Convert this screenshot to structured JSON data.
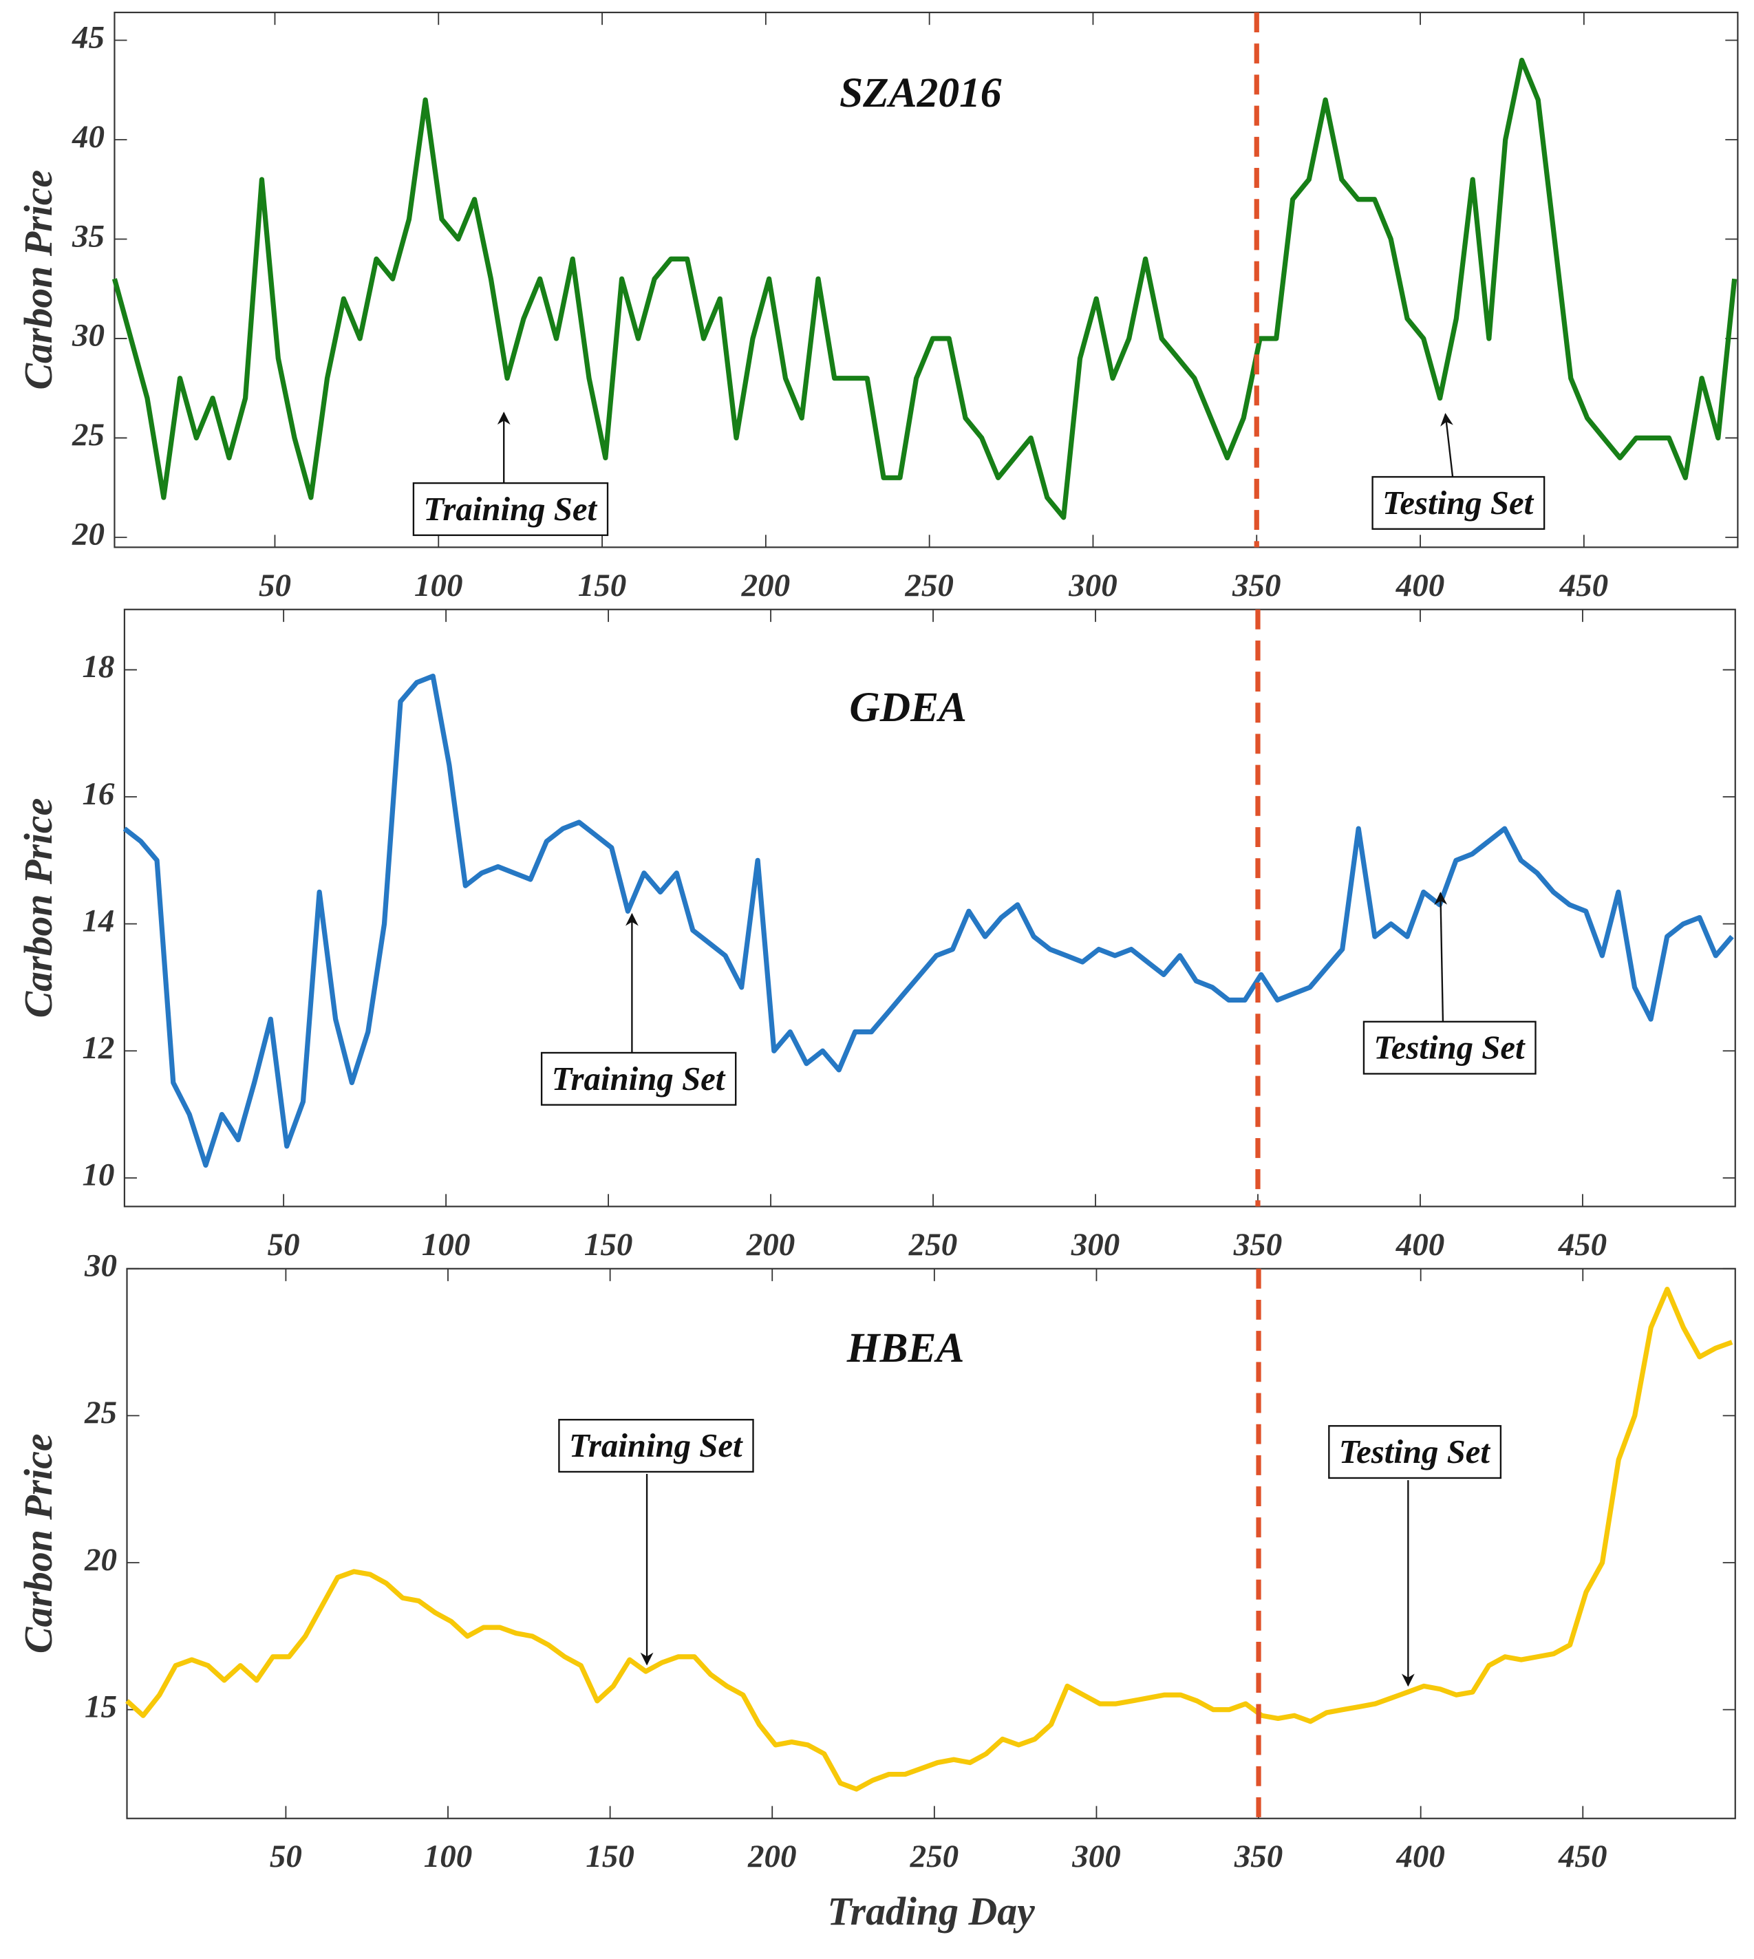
{
  "chart_data": [
    {
      "type": "line",
      "title": "SZA2016",
      "ylabel": "Carbon Price",
      "color": "#177f17",
      "xlim": [
        1,
        497
      ],
      "ylim": [
        19.5,
        46.4
      ],
      "xticks": [
        50,
        100,
        150,
        200,
        250,
        300,
        350,
        400,
        450
      ],
      "yticks": [
        20,
        25,
        30,
        35,
        40,
        45
      ],
      "vline": 350,
      "annotations": [
        "Training Set",
        "Testing Set"
      ],
      "x": [
        1,
        6,
        11,
        16,
        21,
        26,
        31,
        36,
        41,
        46,
        51,
        56,
        61,
        66,
        71,
        76,
        81,
        86,
        91,
        96,
        101,
        106,
        111,
        116,
        121,
        126,
        131,
        136,
        141,
        146,
        151,
        156,
        161,
        166,
        171,
        176,
        181,
        186,
        191,
        196,
        201,
        206,
        211,
        216,
        221,
        226,
        231,
        236,
        241,
        246,
        251,
        256,
        261,
        266,
        271,
        276,
        281,
        286,
        291,
        296,
        301,
        306,
        311,
        316,
        321,
        326,
        331,
        336,
        341,
        346,
        351,
        356,
        361,
        366,
        371,
        376,
        381,
        386,
        391,
        396,
        401,
        406,
        411,
        416,
        421,
        426,
        431,
        436,
        441,
        446,
        451,
        456,
        461,
        466,
        471,
        476,
        481,
        486,
        491,
        496
      ],
      "values": [
        33,
        30,
        27,
        22,
        28,
        25,
        27,
        24,
        27,
        38,
        29,
        25,
        22,
        28,
        32,
        30,
        34,
        33,
        36,
        42,
        36,
        35,
        37,
        33,
        28,
        31,
        33,
        30,
        34,
        28,
        24,
        33,
        30,
        33,
        34,
        34,
        30,
        32,
        25,
        30,
        33,
        28,
        26,
        33,
        28,
        28,
        28,
        23,
        23,
        28,
        30,
        30,
        26,
        25,
        23,
        24,
        25,
        22,
        21,
        29,
        32,
        28,
        30,
        34,
        30,
        29,
        28,
        26,
        24,
        26,
        30,
        30,
        37,
        38,
        42,
        38,
        37,
        37,
        35,
        31,
        30,
        27,
        31,
        38,
        30,
        40,
        44,
        42,
        35,
        28,
        26,
        25,
        24,
        25,
        25,
        25,
        23,
        28,
        25,
        33
      ]
    },
    {
      "type": "line",
      "title": "GDEA",
      "ylabel": "Carbon Price",
      "color": "#2678c4",
      "xlim": [
        1,
        497
      ],
      "ylim": [
        9.55,
        18.95
      ],
      "xticks": [
        50,
        100,
        150,
        200,
        250,
        300,
        350,
        400,
        450
      ],
      "yticks": [
        10,
        12,
        14,
        16,
        18
      ],
      "vline": 350,
      "annotations": [
        "Training Set",
        "Testing Set"
      ],
      "x": [
        1,
        6,
        11,
        16,
        21,
        26,
        31,
        36,
        41,
        46,
        51,
        56,
        61,
        66,
        71,
        76,
        81,
        86,
        91,
        96,
        101,
        106,
        111,
        116,
        121,
        126,
        131,
        136,
        141,
        146,
        151,
        156,
        161,
        166,
        171,
        176,
        181,
        186,
        191,
        196,
        201,
        206,
        211,
        216,
        221,
        226,
        231,
        236,
        241,
        246,
        251,
        256,
        261,
        266,
        271,
        276,
        281,
        286,
        291,
        296,
        301,
        306,
        311,
        316,
        321,
        326,
        331,
        336,
        341,
        346,
        351,
        356,
        361,
        366,
        371,
        376,
        381,
        386,
        391,
        396,
        401,
        406,
        411,
        416,
        421,
        426,
        431,
        436,
        441,
        446,
        451,
        456,
        461,
        466,
        471,
        476,
        481,
        486,
        491,
        496
      ],
      "values": [
        15.5,
        15.3,
        15.0,
        11.5,
        11.0,
        10.2,
        11.0,
        10.6,
        11.5,
        12.5,
        10.5,
        11.2,
        14.5,
        12.5,
        11.5,
        12.3,
        14.0,
        17.5,
        17.8,
        17.9,
        16.5,
        14.6,
        14.8,
        14.9,
        14.8,
        14.7,
        15.3,
        15.5,
        15.6,
        15.4,
        15.2,
        14.2,
        14.8,
        14.5,
        14.8,
        13.9,
        13.7,
        13.5,
        13.0,
        15.0,
        12.0,
        12.3,
        11.8,
        12.0,
        11.7,
        12.3,
        12.3,
        12.6,
        12.9,
        13.2,
        13.5,
        13.6,
        14.2,
        13.8,
        14.1,
        14.3,
        13.8,
        13.6,
        13.5,
        13.4,
        13.6,
        13.5,
        13.6,
        13.4,
        13.2,
        13.5,
        13.1,
        13.0,
        12.8,
        12.8,
        13.2,
        12.8,
        12.9,
        13.0,
        13.3,
        13.6,
        15.5,
        13.8,
        14.0,
        13.8,
        14.5,
        14.3,
        15.0,
        15.1,
        15.3,
        15.5,
        15.0,
        14.8,
        14.5,
        14.3,
        14.2,
        13.5,
        14.5,
        13.0,
        12.5,
        13.8,
        14.0,
        14.1,
        13.5,
        13.8
      ]
    },
    {
      "type": "line",
      "title": "HBEA",
      "ylabel": "Carbon Price",
      "xlabel": "Trading Day",
      "color": "#f7c808",
      "xlim": [
        1,
        497
      ],
      "ylim": [
        11.3,
        30
      ],
      "xticks": [
        50,
        100,
        150,
        200,
        250,
        300,
        350,
        400,
        450
      ],
      "yticks": [
        15,
        20,
        25,
        30
      ],
      "vline": 350,
      "annotations": [
        "Training Set",
        "Testing Set"
      ],
      "x": [
        1,
        6,
        11,
        16,
        21,
        26,
        31,
        36,
        41,
        46,
        51,
        56,
        61,
        66,
        71,
        76,
        81,
        86,
        91,
        96,
        101,
        106,
        111,
        116,
        121,
        126,
        131,
        136,
        141,
        146,
        151,
        156,
        161,
        166,
        171,
        176,
        181,
        186,
        191,
        196,
        201,
        206,
        211,
        216,
        221,
        226,
        231,
        236,
        241,
        246,
        251,
        256,
        261,
        266,
        271,
        276,
        281,
        286,
        291,
        296,
        301,
        306,
        311,
        316,
        321,
        326,
        331,
        336,
        341,
        346,
        351,
        356,
        361,
        366,
        371,
        376,
        381,
        386,
        391,
        396,
        401,
        406,
        411,
        416,
        421,
        426,
        431,
        436,
        441,
        446,
        451,
        456,
        461,
        466,
        471,
        476,
        481,
        486,
        491,
        496
      ],
      "values": [
        15.3,
        14.8,
        15.5,
        16.5,
        16.7,
        16.5,
        16.0,
        16.5,
        16.0,
        16.8,
        16.8,
        17.5,
        18.5,
        19.5,
        19.7,
        19.6,
        19.3,
        18.8,
        18.7,
        18.3,
        18.0,
        17.5,
        17.8,
        17.8,
        17.6,
        17.5,
        17.2,
        16.8,
        16.5,
        15.3,
        15.8,
        16.7,
        16.3,
        16.6,
        16.8,
        16.8,
        16.2,
        15.8,
        15.5,
        14.5,
        13.8,
        13.9,
        13.8,
        13.5,
        12.5,
        12.3,
        12.6,
        12.8,
        12.8,
        13.0,
        13.2,
        13.3,
        13.2,
        13.5,
        14.0,
        13.8,
        14.0,
        14.5,
        15.8,
        15.5,
        15.2,
        15.2,
        15.3,
        15.4,
        15.5,
        15.5,
        15.3,
        15.0,
        15.0,
        15.2,
        14.8,
        14.7,
        14.8,
        14.6,
        14.9,
        15.0,
        15.1,
        15.2,
        15.4,
        15.6,
        15.8,
        15.7,
        15.5,
        15.6,
        16.5,
        16.8,
        16.7,
        16.8,
        16.9,
        17.2,
        19.0,
        20.0,
        23.5,
        25.0,
        28.0,
        29.3,
        28.0,
        27.0,
        27.3,
        27.5
      ]
    }
  ]
}
